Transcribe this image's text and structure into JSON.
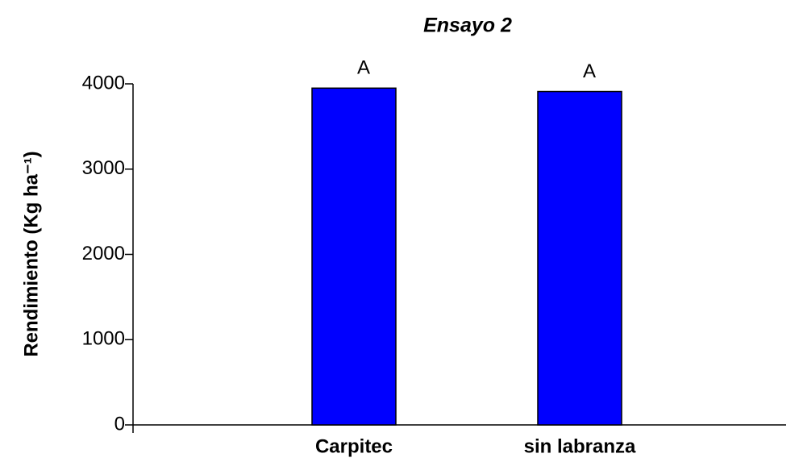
{
  "chart_data": {
    "type": "bar",
    "title": "Ensayo 2",
    "y_label": "Rendimiento (Kg ha⁻¹)",
    "categories": [
      "Carpitec",
      "sin labranza"
    ],
    "values": [
      3950,
      3910
    ],
    "annotations": [
      "A",
      "A"
    ],
    "color": "#0000ff",
    "ylim": [
      0,
      4000
    ],
    "yticks": [
      0,
      1000,
      2000,
      3000,
      4000
    ]
  }
}
